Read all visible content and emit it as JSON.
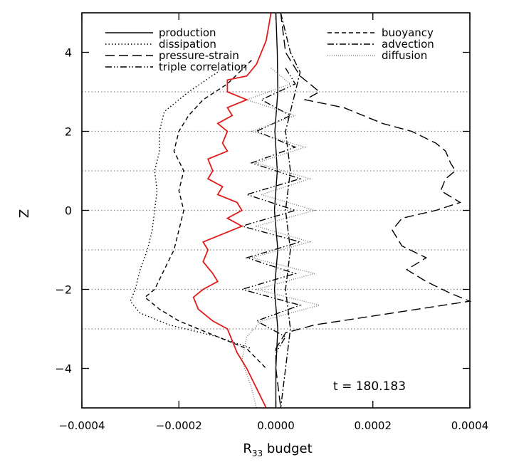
{
  "chart_data": {
    "type": "line",
    "title": "",
    "xlabel": "R",
    "xlabel_sub": "33",
    "xlabel_suffix": " budget",
    "ylabel": "Z",
    "xlim": [
      -0.0004,
      0.0004
    ],
    "ylim": [
      -5,
      5
    ],
    "xticks": [
      {
        "value": -0.0004,
        "label": "−0.0004"
      },
      {
        "value": -0.0002,
        "label": "−0.0002"
      },
      {
        "value": 0.0,
        "label": "0.0000"
      },
      {
        "value": 0.0002,
        "label": "0.0002"
      },
      {
        "value": 0.0004,
        "label": "0.0004"
      }
    ],
    "yticks": [
      {
        "value": 4,
        "label": "4"
      },
      {
        "value": 2,
        "label": "2"
      },
      {
        "value": 0,
        "label": "0"
      },
      {
        "value": -2,
        "label": "−2"
      },
      {
        "value": -4,
        "label": "−4"
      }
    ],
    "reference_lines_z": [
      3,
      2,
      1,
      0,
      -1,
      -2,
      -3
    ],
    "annotation": "t  =  180.183",
    "legend_position": "top",
    "series": [
      {
        "name": "production",
        "style": "solid",
        "color": "#000000",
        "points": [
          [
            0.0,
            5.0
          ],
          [
            3e-06,
            4.0
          ],
          [
            4e-06,
            3.0
          ],
          [
            -2e-06,
            2.0
          ],
          [
            3e-06,
            1.0
          ],
          [
            -3e-06,
            0.0
          ],
          [
            4e-06,
            -1.0
          ],
          [
            -3e-06,
            -2.0
          ],
          [
            4e-06,
            -3.0
          ],
          [
            0.0,
            -4.0
          ],
          [
            0.0,
            -5.0
          ]
        ]
      },
      {
        "name": "dissipation",
        "style": "dotted",
        "color": "#000000",
        "points": [
          [
            -0.00012,
            3.5
          ],
          [
            -0.00018,
            3.0
          ],
          [
            -0.00023,
            2.5
          ],
          [
            -0.00024,
            2.0
          ],
          [
            -0.00024,
            1.5
          ],
          [
            -0.00025,
            1.0
          ],
          [
            -0.000245,
            0.5
          ],
          [
            -0.00025,
            0.0
          ],
          [
            -0.000255,
            -0.5
          ],
          [
            -0.000265,
            -1.0
          ],
          [
            -0.00028,
            -1.5
          ],
          [
            -0.00029,
            -2.0
          ],
          [
            -0.0003,
            -2.3
          ],
          [
            -0.00028,
            -2.6
          ],
          [
            -0.00022,
            -2.9
          ],
          [
            -0.00012,
            -3.2
          ],
          [
            -5e-05,
            -3.5
          ]
        ]
      },
      {
        "name": "pressure-strain",
        "style": "longdash",
        "color": "#000000",
        "points": [
          [
            1e-05,
            5.0
          ],
          [
            2e-05,
            4.0
          ],
          [
            3e-05,
            3.8
          ],
          [
            5e-05,
            3.4
          ],
          [
            9e-05,
            3.0
          ],
          [
            6e-05,
            2.8
          ],
          [
            0.00014,
            2.6
          ],
          [
            0.00022,
            2.2
          ],
          [
            0.00028,
            2.0
          ],
          [
            0.00033,
            1.7
          ],
          [
            0.00035,
            1.5
          ],
          [
            0.00036,
            1.2
          ],
          [
            0.00037,
            1.0
          ],
          [
            0.00035,
            0.8
          ],
          [
            0.00034,
            0.5
          ],
          [
            0.00038,
            0.2
          ],
          [
            0.00033,
            0.0
          ],
          [
            0.00026,
            -0.2
          ],
          [
            0.00024,
            -0.5
          ],
          [
            0.00026,
            -0.9
          ],
          [
            0.00031,
            -1.2
          ],
          [
            0.00027,
            -1.5
          ],
          [
            0.00031,
            -1.8
          ],
          [
            0.00036,
            -2.1
          ],
          [
            0.0004,
            -2.3
          ],
          [
            0.00024,
            -2.6
          ],
          [
            8e-05,
            -2.9
          ],
          [
            2e-05,
            -3.1
          ],
          [
            0.0,
            -3.5
          ],
          [
            0.0,
            -4.0
          ],
          [
            1e-05,
            -5.0
          ]
        ]
      },
      {
        "name": "triple correlation",
        "style": "dashdotdot",
        "color": "#000000",
        "points": [
          [
            2e-05,
            3.6
          ],
          [
            4e-05,
            3.2
          ],
          [
            -3e-05,
            2.8
          ],
          [
            3e-05,
            2.4
          ],
          [
            -4e-05,
            2.0
          ],
          [
            4e-05,
            1.6
          ],
          [
            -5e-05,
            1.2
          ],
          [
            5e-05,
            0.8
          ],
          [
            -6e-05,
            0.4
          ],
          [
            4e-05,
            0.0
          ],
          [
            -7e-05,
            -0.4
          ],
          [
            5e-05,
            -0.8
          ],
          [
            -6e-05,
            -1.2
          ],
          [
            4e-05,
            -1.6
          ],
          [
            -7e-05,
            -2.0
          ],
          [
            5e-05,
            -2.4
          ],
          [
            -4e-05,
            -2.8
          ],
          [
            2e-05,
            -3.2
          ],
          [
            0.0,
            -3.6
          ]
        ]
      },
      {
        "name": "buoyancy",
        "style": "shortdash",
        "color": "#000000",
        "points": [
          [
            -5e-05,
            3.8
          ],
          [
            -0.0001,
            3.2
          ],
          [
            -0.00015,
            2.8
          ],
          [
            -0.00018,
            2.4
          ],
          [
            -0.0002,
            2.0
          ],
          [
            -0.00021,
            1.5
          ],
          [
            -0.00019,
            1.0
          ],
          [
            -0.0002,
            0.5
          ],
          [
            -0.00019,
            0.0
          ],
          [
            -0.0002,
            -0.5
          ],
          [
            -0.00021,
            -1.0
          ],
          [
            -0.00023,
            -1.5
          ],
          [
            -0.00025,
            -2.0
          ],
          [
            -0.00027,
            -2.2
          ],
          [
            -0.00024,
            -2.5
          ],
          [
            -0.0002,
            -2.8
          ],
          [
            -0.00012,
            -3.2
          ],
          [
            -6e-05,
            -3.5
          ],
          [
            -2e-05,
            -4.0
          ]
        ]
      },
      {
        "name": "advection",
        "style": "dashdot",
        "color": "#000000",
        "points": [
          [
            1e-05,
            5.0
          ],
          [
            3e-05,
            4.0
          ],
          [
            5e-05,
            3.5
          ],
          [
            4e-05,
            3.0
          ],
          [
            2e-05,
            2.0
          ],
          [
            3e-05,
            1.0
          ],
          [
            2e-05,
            0.0
          ],
          [
            3e-05,
            -1.0
          ],
          [
            2e-05,
            -2.0
          ],
          [
            3e-05,
            -3.0
          ],
          [
            2e-05,
            -4.0
          ],
          [
            1e-05,
            -5.0
          ]
        ]
      },
      {
        "name": "diffusion",
        "style": "fine-dotted",
        "color": "#808080",
        "points": [
          [
            -1e-05,
            3.6
          ],
          [
            3e-05,
            3.2
          ],
          [
            -6e-05,
            2.8
          ],
          [
            4e-05,
            2.4
          ],
          [
            -5e-05,
            2.0
          ],
          [
            6e-05,
            1.6
          ],
          [
            -4e-05,
            1.2
          ],
          [
            7e-05,
            0.8
          ],
          [
            -3e-05,
            0.4
          ],
          [
            8e-05,
            0.0
          ],
          [
            -4e-05,
            -0.4
          ],
          [
            7e-05,
            -0.8
          ],
          [
            -5e-05,
            -1.2
          ],
          [
            8e-05,
            -1.6
          ],
          [
            -4e-05,
            -2.0
          ],
          [
            9e-05,
            -2.4
          ],
          [
            -3e-05,
            -2.8
          ],
          [
            -6e-05,
            -3.2
          ],
          [
            -7e-05,
            -3.8
          ],
          [
            -5e-05,
            -4.5
          ],
          [
            -4e-05,
            -5.0
          ]
        ]
      },
      {
        "name": "",
        "style": "solid",
        "color": "#e01b1b",
        "points": [
          [
            -1e-05,
            5.0
          ],
          [
            -2e-05,
            4.3
          ],
          [
            -4e-05,
            3.7
          ],
          [
            -6e-05,
            3.4
          ],
          [
            -0.0001,
            3.3
          ],
          [
            -0.0001,
            3.0
          ],
          [
            -6e-05,
            2.8
          ],
          [
            -0.0001,
            2.6
          ],
          [
            -9e-05,
            2.4
          ],
          [
            -0.00012,
            2.2
          ],
          [
            -0.0001,
            2.0
          ],
          [
            -0.00011,
            1.7
          ],
          [
            -0.0001,
            1.5
          ],
          [
            -0.00014,
            1.3
          ],
          [
            -0.00013,
            1.0
          ],
          [
            -0.00014,
            0.8
          ],
          [
            -0.00011,
            0.6
          ],
          [
            -0.00012,
            0.4
          ],
          [
            -8e-05,
            0.2
          ],
          [
            -7e-05,
            0.0
          ],
          [
            -0.0001,
            -0.2
          ],
          [
            -7e-05,
            -0.4
          ],
          [
            -0.00011,
            -0.6
          ],
          [
            -0.00015,
            -0.8
          ],
          [
            -0.00014,
            -1.0
          ],
          [
            -0.00015,
            -1.3
          ],
          [
            -0.00013,
            -1.6
          ],
          [
            -0.00012,
            -1.8
          ],
          [
            -0.00015,
            -2.0
          ],
          [
            -0.00017,
            -2.2
          ],
          [
            -0.00016,
            -2.5
          ],
          [
            -0.00013,
            -2.8
          ],
          [
            -0.0001,
            -3.0
          ],
          [
            -9e-05,
            -3.3
          ],
          [
            -8e-05,
            -3.6
          ],
          [
            -6e-05,
            -4.0
          ],
          [
            -4e-05,
            -4.5
          ],
          [
            -2e-05,
            -5.0
          ]
        ]
      }
    ]
  }
}
